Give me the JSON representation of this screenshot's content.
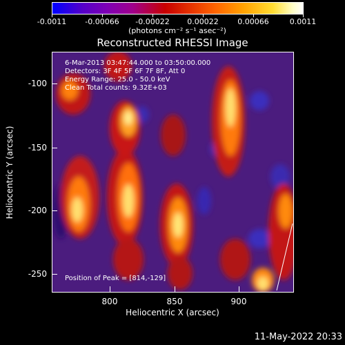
{
  "colorbar": {
    "tick_labels": [
      "-0.0011",
      "-0.00066",
      "-0.00022",
      "0.00022",
      "0.00066",
      "0.0011"
    ],
    "units": "(photons cm⁻² s⁻¹ asec⁻²)"
  },
  "title": "Reconstructed RHESSI Image",
  "info": {
    "time_range": "6-Mar-2013 03:47:44.000 to 03:50:00.000",
    "detectors": "Detectors: 3F 4F 5F 6F 7F 8F, Att 0",
    "energy_range": "Energy Range: 25.0 - 50.0 keV",
    "clean_counts": "Clean      Total counts: 9.32E+03",
    "peak_position": "Position of Peak = [814,-129]"
  },
  "axes": {
    "xlabel": "Heliocentric X (arcsec)",
    "ylabel": "Heliocentric Y (arcsec)",
    "x_ticks": [
      "800",
      "850",
      "900"
    ],
    "y_ticks": [
      "-100",
      "-150",
      "-200",
      "-250"
    ]
  },
  "timestamp": "11-May-2022 20:33",
  "colors": {
    "background": "#000000",
    "plot_base": "#4b1c7e",
    "text": "#ffffff"
  }
}
